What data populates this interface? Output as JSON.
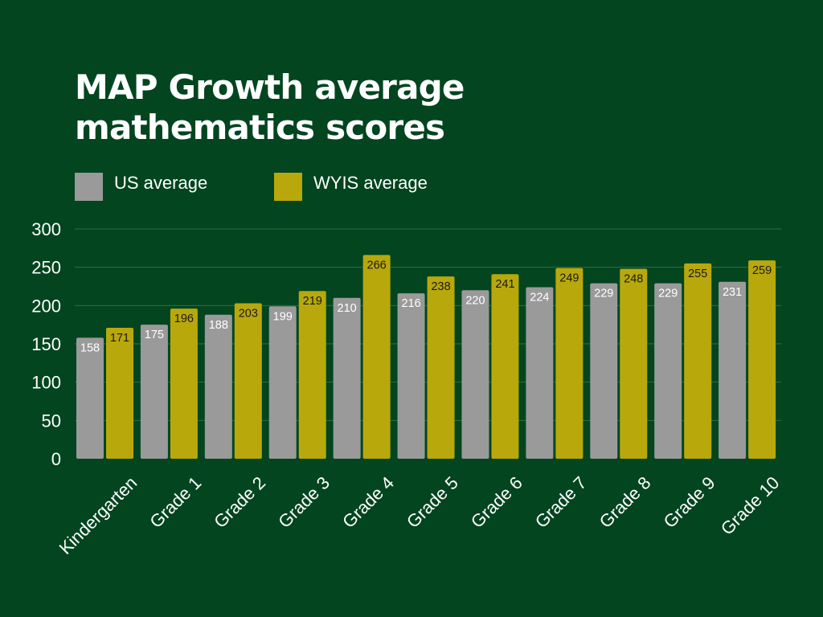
{
  "colors": {
    "background": "#02451f",
    "us": "#9a9a9a",
    "wyis": "#b8a80c",
    "text": "#ffffff",
    "wyis_label": "#1a1a1a",
    "grid": "#2f6e45"
  },
  "legend": [
    {
      "label": "US average"
    },
    {
      "label": "WYIS average"
    }
  ],
  "chart_data": {
    "type": "bar",
    "title": "MAP Growth average mathematics scores",
    "title_lines": [
      "MAP Growth average",
      "mathematics scores"
    ],
    "categories": [
      "Kindergarten",
      "Grade 1",
      "Grade 2",
      "Grade 3",
      "Grade 4",
      "Grade 5",
      "Grade 6",
      "Grade 7",
      "Grade 8",
      "Grade 9",
      "Grade 10"
    ],
    "series": [
      {
        "name": "US average",
        "values": [
          158,
          175,
          188,
          199,
          210,
          216,
          220,
          224,
          229,
          229,
          231
        ]
      },
      {
        "name": "WYIS average",
        "values": [
          171,
          196,
          203,
          219,
          266,
          238,
          241,
          249,
          248,
          255,
          259
        ]
      }
    ],
    "ylim": [
      0,
      300
    ],
    "yticks": [
      0,
      50,
      100,
      150,
      200,
      250,
      300
    ],
    "grid": true,
    "legend_position": "top-left",
    "xlabel": "",
    "ylabel": ""
  }
}
